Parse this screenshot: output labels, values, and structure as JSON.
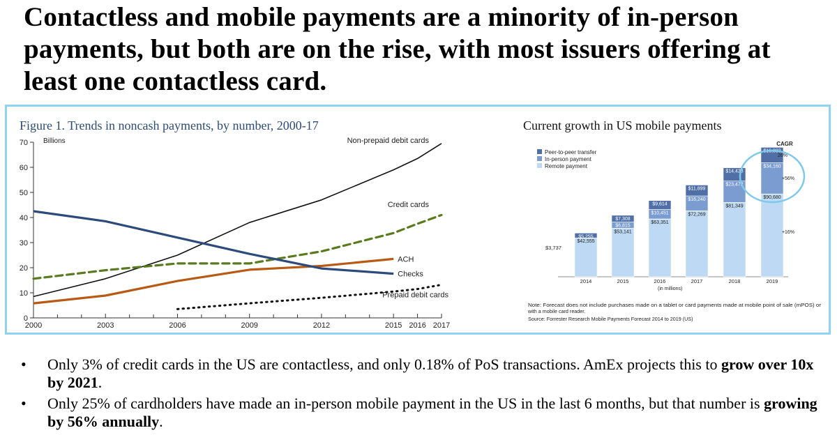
{
  "headline": "Contactless and mobile payments are a minority of in-person payments, but both are on the rise, with most issuers offering at least one contactless card.",
  "colors": {
    "frame": "#8fd3f4",
    "debit": "#111111",
    "credit": "#5a7a1e",
    "ach": "#b85a14",
    "checks": "#2d4a7c",
    "prepaid": "#111111",
    "p2p": "#4f6fa6",
    "inperson": "#7b9cd0",
    "remote": "#bdd9f3",
    "circle": "#7ec8ec"
  },
  "chart_data": [
    {
      "type": "line",
      "title": "Figure 1. Trends in noncash payments, by number, 2000-17",
      "ylabel": "Billions",
      "ylim": [
        0,
        70
      ],
      "yticks": [
        0,
        10,
        20,
        30,
        40,
        50,
        60,
        70
      ],
      "xlim": [
        2000,
        2017
      ],
      "xticks": [
        "2000",
        "2003",
        "2006",
        "2009",
        "2012",
        "2015",
        "2016",
        "2017"
      ],
      "xtick_values": [
        2000,
        2003,
        2006,
        2009,
        2012,
        2015,
        2016,
        2017
      ],
      "minor_xticks": [
        2001,
        2002,
        2004,
        2005,
        2007,
        2008,
        2010,
        2011,
        2013,
        2014
      ],
      "series": [
        {
          "name": "Non-prepaid debit cards",
          "style": "solid",
          "x": [
            2000,
            2003,
            2006,
            2009,
            2012,
            2015,
            2016,
            2017
          ],
          "y": [
            8.5,
            15.6,
            25.0,
            38.0,
            47.0,
            59.0,
            63.5,
            69.5
          ]
        },
        {
          "name": "Credit cards",
          "style": "dashed",
          "x": [
            2000,
            2003,
            2006,
            2009,
            2012,
            2015,
            2016,
            2017
          ],
          "y": [
            15.6,
            19.0,
            21.7,
            21.7,
            26.5,
            33.8,
            37.5,
            41.0
          ]
        },
        {
          "name": "ACH",
          "style": "solid",
          "x": [
            2000,
            2003,
            2006,
            2009,
            2012,
            2015
          ],
          "y": [
            5.8,
            8.9,
            14.7,
            19.2,
            20.7,
            23.5
          ]
        },
        {
          "name": "Checks",
          "style": "solid",
          "x": [
            2000,
            2003,
            2006,
            2009,
            2012,
            2015
          ],
          "y": [
            42.5,
            38.5,
            32.0,
            25.5,
            19.7,
            17.6
          ]
        },
        {
          "name": "Prepaid debit cards",
          "style": "dotted",
          "x": [
            2006,
            2009,
            2012,
            2015,
            2016,
            2017
          ],
          "y": [
            3.5,
            5.8,
            8.0,
            10.5,
            11.5,
            13.2
          ]
        }
      ]
    },
    {
      "type": "bar",
      "title": "Current growth in US mobile payments",
      "xlabel": "(in millions)",
      "categories": [
        "2014",
        "2015",
        "2016",
        "2017",
        "2018",
        "2019"
      ],
      "ylim": [
        0,
        145000
      ],
      "series": [
        {
          "name": "Remote payment",
          "values": [
            42555,
            53141,
            63351,
            72269,
            81349,
            90680
          ],
          "labels": [
            "$42,555",
            "$53,141",
            "$63,351",
            "$72,269",
            "$81,349",
            "$90,680"
          ]
        },
        {
          "name": "In-person payment",
          "values": [
            null,
            6815,
            10451,
            16240,
            23472,
            34160
          ],
          "labels": [
            "",
            "$6,815",
            "$10,451",
            "$16,240",
            "$23,472",
            "$34,160"
          ]
        },
        {
          "name": "Peer-to-peer transfer",
          "values": [
            5255,
            7308,
            9614,
            11899,
            14428,
            16833
          ],
          "labels": [
            "$5,255",
            "$7,308",
            "$9,614",
            "$11,899",
            "$14,428",
            "$16,833"
          ]
        }
      ],
      "extra_label": "$3,737",
      "cagr_title": "CAGR",
      "cagr": [
        "26%",
        "+56%",
        "+16%"
      ],
      "note": "Note: Forecast does not include purchases made on a tablet or card payments made at mobile point of sale (mPOS) or with a mobile card reader.",
      "source": "Source: Forrester Research Mobile Payments Forecast 2014 to 2019 (US)"
    }
  ],
  "bullets": [
    {
      "text": "Only 3% of credit cards in the US are contactless, and only 0.18% of PoS transactions. AmEx projects this to ",
      "bold": "grow over 10x by 2021",
      "tail": "."
    },
    {
      "text": "Only 25% of cardholders have made an in-person mobile payment in the US in the last 6 months, but that number is ",
      "bold": "growing by 56% annually",
      "tail": "."
    }
  ],
  "bullet_glyph": "•"
}
